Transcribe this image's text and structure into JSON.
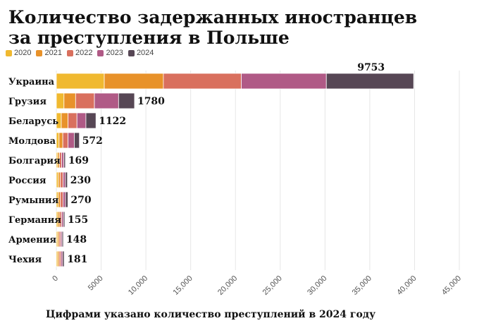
{
  "chart_data": {
    "type": "bar",
    "orientation": "horizontal",
    "stacked": true,
    "title": "Количество задержанных иностранцев за преступления в Польше",
    "categories": [
      "Украина",
      "Грузия",
      "Беларусь",
      "Молдова",
      "Болгария",
      "Россия",
      "Румыния",
      "Германия",
      "Армения",
      "Чехия"
    ],
    "series": [
      {
        "name": "2020",
        "color": "#F0B930",
        "values": [
          5350,
          850,
          550,
          300,
          160,
          220,
          210,
          180,
          145,
          150
        ]
      },
      {
        "name": "2021",
        "color": "#E8922A",
        "values": [
          6600,
          1300,
          750,
          420,
          200,
          230,
          240,
          210,
          160,
          170
        ]
      },
      {
        "name": "2022",
        "color": "#D9705E",
        "values": [
          8700,
          2100,
          1000,
          580,
          230,
          300,
          290,
          200,
          170,
          190
        ]
      },
      {
        "name": "2023",
        "color": "#B05A86",
        "values": [
          9500,
          2700,
          1000,
          700,
          250,
          260,
          280,
          200,
          160,
          190
        ]
      },
      {
        "name": "2024",
        "color": "#574755",
        "values": [
          9753,
          1780,
          1122,
          572,
          169,
          230,
          270,
          155,
          148,
          181
        ]
      }
    ],
    "data_labels": [
      "9753",
      "1780",
      "1122",
      "572",
      "169",
      "230",
      "270",
      "155",
      "148",
      "181"
    ],
    "xlim": [
      0,
      45000
    ],
    "xticks": [
      0,
      5000,
      10000,
      15000,
      20000,
      25000,
      30000,
      35000,
      40000,
      45000
    ],
    "xtick_labels": [
      "0",
      "5000",
      "10,000",
      "15,000",
      "20,000",
      "25,000",
      "30,000",
      "35,000",
      "40,000",
      "45,000"
    ],
    "grid": true,
    "legend": "top-left"
  },
  "footnote": "Цифрами указано количество преступлений в 2024 году"
}
